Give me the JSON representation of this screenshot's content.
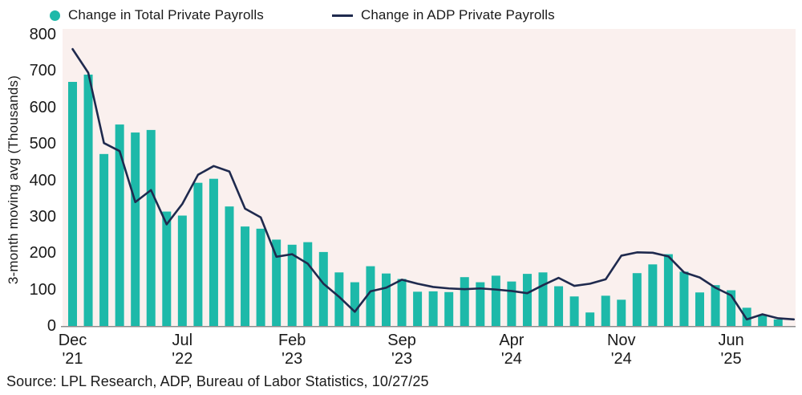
{
  "legend": {
    "series1_label": "Change in Total Private Payrolls",
    "series2_label": "Change in ADP Private Payrolls"
  },
  "source_line": "Source: LPL Research, ADP, Bureau of Labor Statistics, 10/27/25",
  "colors": {
    "bar": "#1db9a9",
    "line": "#1f2a4e",
    "plot_bg": "#faf0ee",
    "axis_line": "#8c8c8c",
    "text": "#1a1a1a"
  },
  "chart_data": {
    "type": "bar",
    "title": "",
    "ylabel": "3-month moving avg (Thousands)",
    "ylim": [
      0,
      800
    ],
    "y_ticks": [
      0,
      100,
      200,
      300,
      400,
      500,
      600,
      700,
      800
    ],
    "grid": false,
    "legend_position": "top",
    "categories": [
      "Dec '21",
      "Jan '22",
      "Feb '22",
      "Mar '22",
      "Apr '22",
      "May '22",
      "Jun '22",
      "Jul '22",
      "Aug '22",
      "Sep '22",
      "Oct '22",
      "Nov '22",
      "Dec '22",
      "Jan '23",
      "Feb '23",
      "Mar '23",
      "Apr '23",
      "May '23",
      "Jun '23",
      "Jul '23",
      "Aug '23",
      "Sep '23",
      "Oct '23",
      "Nov '23",
      "Dec '23",
      "Jan '24",
      "Feb '24",
      "Mar '24",
      "Apr '24",
      "May '24",
      "Jun '24",
      "Jul '24",
      "Aug '24",
      "Sep '24",
      "Oct '24",
      "Nov '24",
      "Dec '24",
      "Jan '25",
      "Feb '25",
      "Mar '25",
      "Apr '25",
      "May '25",
      "Jun '25",
      "Jul '25",
      "Aug '25",
      "Sep '25",
      "Oct '25"
    ],
    "x_tick_indices": [
      0,
      7,
      14,
      21,
      28,
      35,
      42
    ],
    "x_tick_labels": [
      [
        "Dec",
        "'21"
      ],
      [
        "Jul",
        "'22"
      ],
      [
        "Feb",
        "'23"
      ],
      [
        "Sep",
        "'23"
      ],
      [
        "Apr",
        "'24"
      ],
      [
        "Nov",
        "'24"
      ],
      [
        "Jun",
        "'25"
      ]
    ],
    "series": [
      {
        "name": "Change in Total Private Payrolls",
        "type": "bar",
        "values": [
          670,
          690,
          472,
          553,
          531,
          538,
          314,
          303,
          393,
          404,
          328,
          273,
          267,
          237,
          223,
          230,
          203,
          147,
          120,
          164,
          144,
          129,
          94,
          95,
          93,
          134,
          120,
          138,
          122,
          143,
          147,
          109,
          81,
          37,
          83,
          72,
          145,
          169,
          197,
          149,
          92,
          112,
          98,
          50,
          31,
          18,
          null
        ]
      },
      {
        "name": "Change in ADP Private Payrolls",
        "type": "line",
        "values": [
          760,
          695,
          502,
          480,
          340,
          373,
          279,
          335,
          415,
          439,
          424,
          322,
          298,
          190,
          197,
          171,
          116,
          80,
          39,
          95,
          105,
          127,
          116,
          107,
          103,
          101,
          103,
          100,
          96,
          90,
          112,
          132,
          110,
          116,
          128,
          193,
          202,
          201,
          191,
          147,
          133,
          105,
          84,
          18,
          32,
          21,
          18
        ]
      }
    ]
  }
}
